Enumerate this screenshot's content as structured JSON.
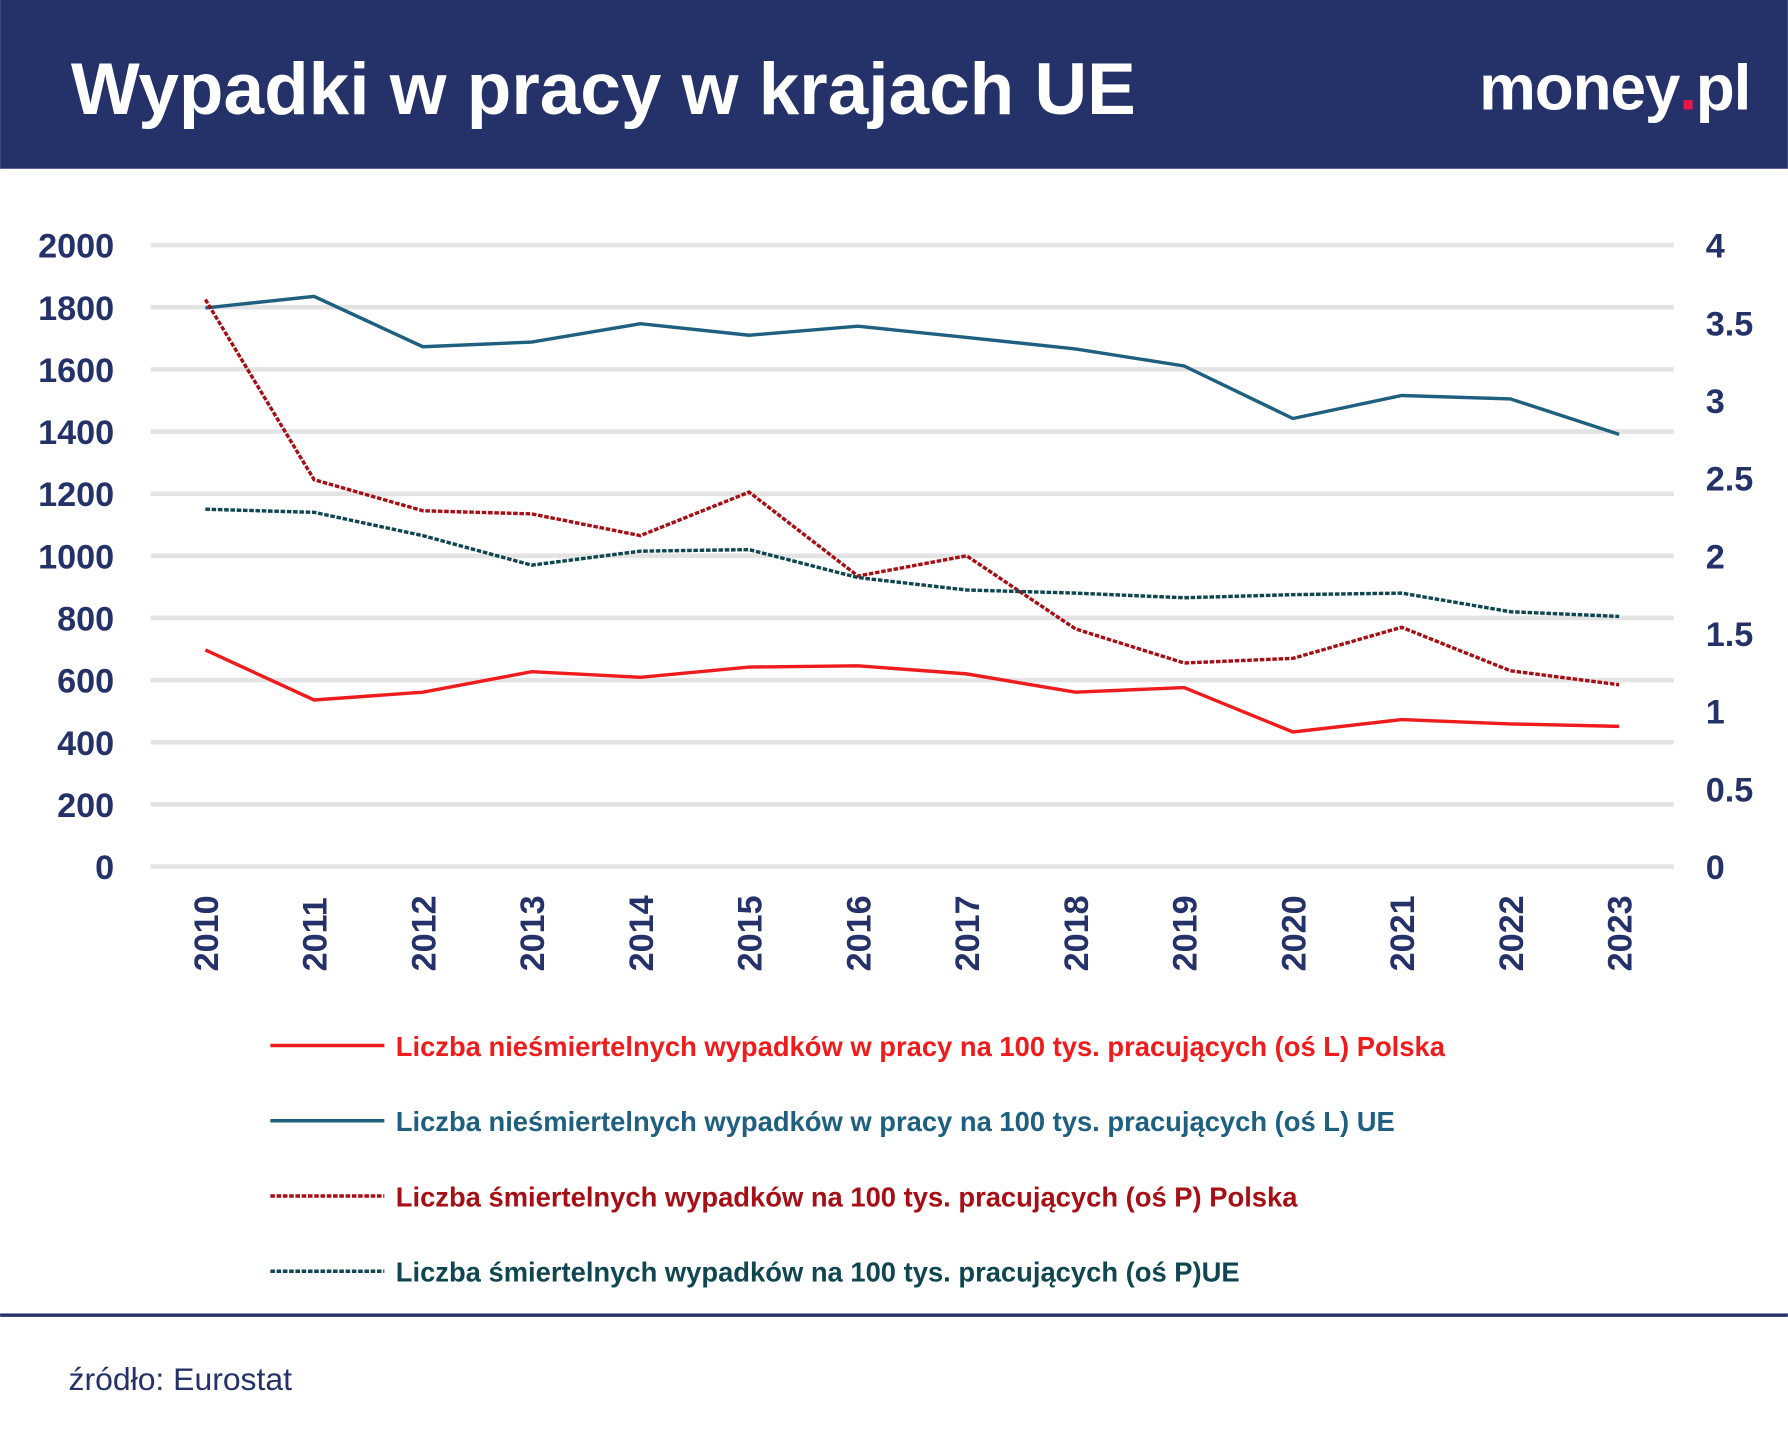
{
  "header": {
    "title": "Wypadki w pracy w krajach UE",
    "logo_text": "money.pl",
    "bg_color": "#253169"
  },
  "source": "źródło: Eurostat",
  "chart_data": {
    "type": "line",
    "title": "Wypadki w pracy w krajach UE",
    "categories": [
      "2010",
      "2011",
      "2012",
      "2013",
      "2014",
      "2015",
      "2016",
      "2017",
      "2018",
      "2019",
      "2020",
      "2021",
      "2022",
      "2023"
    ],
    "left_axis": {
      "ylim": [
        0,
        2000
      ],
      "ticks": [
        "0",
        "200",
        "400",
        "600",
        "800",
        "1000",
        "1200",
        "1400",
        "1600",
        "1800",
        "2000"
      ]
    },
    "right_axis": {
      "ylim": [
        0,
        4
      ],
      "ticks": [
        "0",
        "0.5",
        "1",
        "1.5",
        "2",
        "2.5",
        "3",
        "3.5",
        "4"
      ]
    },
    "grid": true,
    "legend_position": "bottom",
    "series": [
      {
        "name": "Liczba nieśmiertelnych wypadków w pracy na 100 tys. pracujących (oś L) Polska",
        "axis": "left",
        "style": "solid",
        "color": "#ee1c1c",
        "values": [
          697,
          536,
          561,
          627,
          609,
          642,
          646,
          620,
          561,
          576,
          433,
          473,
          459,
          451
        ]
      },
      {
        "name": "Liczba nieśmiertelnych wypadków w pracy na 100 tys. pracujących (oś L) UE",
        "axis": "left",
        "style": "solid",
        "color": "#1f6080",
        "values": [
          1798,
          1835,
          1673,
          1688,
          1747,
          1710,
          1739,
          1703,
          1666,
          1611,
          1442,
          1516,
          1505,
          1391
        ]
      },
      {
        "name": "Liczba śmiertelnych wypadków na 100 tys. pracujących (oś P) Polska",
        "axis": "right",
        "style": "dashed",
        "color": "#a50f15",
        "values": [
          3.65,
          2.49,
          2.29,
          2.27,
          2.13,
          2.41,
          1.87,
          2.0,
          1.53,
          1.31,
          1.34,
          1.54,
          1.26,
          1.17
        ]
      },
      {
        "name": "Liczba śmiertelnych wypadków na 100 tys. pracujących (oś P)UE",
        "axis": "right",
        "style": "dashed",
        "color": "#0f4650",
        "values": [
          2.3,
          2.28,
          2.13,
          1.94,
          2.03,
          2.04,
          1.86,
          1.78,
          1.76,
          1.73,
          1.75,
          1.76,
          1.64,
          1.61
        ]
      }
    ]
  }
}
